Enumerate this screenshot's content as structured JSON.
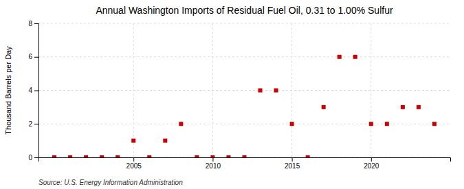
{
  "chart_data": {
    "type": "scatter",
    "title": "Annual Washington Imports of Residual Fuel Oil, 0.31 to 1.00% Sulfur",
    "ylabel": "Thousand Barrels per Day",
    "source": "Source: U.S. Energy Information Administration",
    "x": [
      2000,
      2001,
      2002,
      2003,
      2004,
      2005,
      2006,
      2007,
      2008,
      2009,
      2010,
      2011,
      2012,
      2013,
      2014,
      2015,
      2016,
      2017,
      2018,
      2019,
      2020,
      2021,
      2022,
      2023,
      2024
    ],
    "values": [
      0,
      0,
      0,
      0,
      0,
      1,
      0,
      1,
      2,
      0,
      0,
      0,
      0,
      4,
      4,
      2,
      0,
      3,
      6,
      6,
      2,
      2,
      3,
      3,
      2
    ],
    "color": "#cc0000",
    "marker": "square",
    "xlim": [
      1999,
      2025
    ],
    "ylim": [
      0,
      8
    ],
    "xticks": [
      2005,
      2010,
      2015,
      2020
    ],
    "yticks": [
      0,
      2,
      4,
      6,
      8
    ],
    "grid": true
  }
}
